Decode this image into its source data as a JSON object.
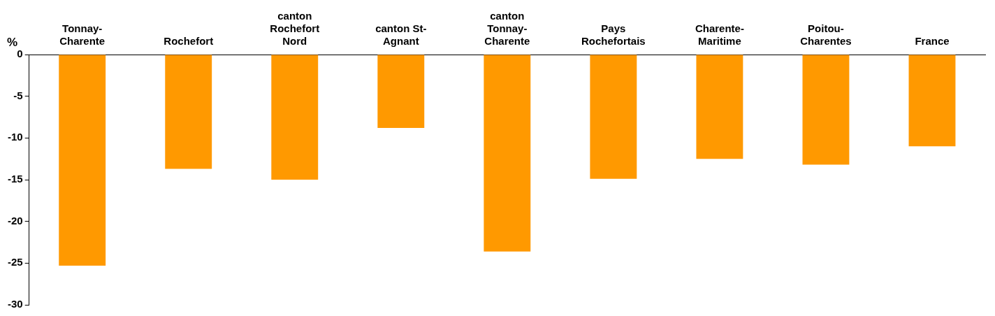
{
  "chart_data": {
    "type": "bar",
    "ylabel": "%",
    "categories": [
      "Tonnay-Charente",
      "Rochefort",
      "canton Rochefort Nord",
      "canton St-Agnant",
      "canton Tonnay-Charente",
      "Pays Rochefortais",
      "Charente-Maritime",
      "Poitou-Charentes",
      "France"
    ],
    "values": [
      -25.3,
      -13.7,
      -15.0,
      -8.8,
      -23.6,
      -14.9,
      -12.5,
      -13.2,
      -11.0
    ],
    "color": "#ff9900",
    "ylim": [
      -30,
      0
    ],
    "yticks": [
      -30,
      -25,
      -20,
      -15,
      -10,
      -5,
      0
    ],
    "grid": false,
    "legend": false
  }
}
